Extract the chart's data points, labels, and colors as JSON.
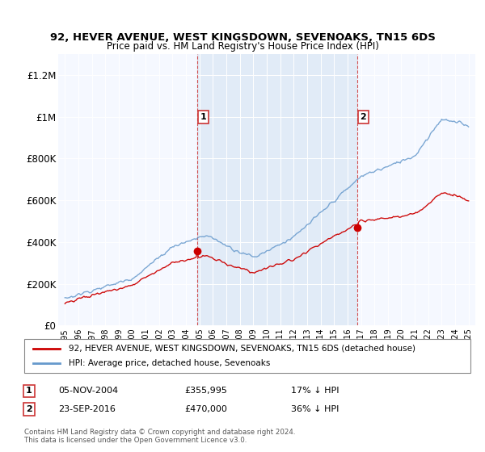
{
  "title": "92, HEVER AVENUE, WEST KINGSDOWN, SEVENOAKS, TN15 6DS",
  "subtitle": "Price paid vs. HM Land Registry's House Price Index (HPI)",
  "background_color": "#ffffff",
  "plot_bg_color": "#f5f8ff",
  "shade_color": "#dce8f5",
  "hpi_color": "#6699cc",
  "price_color": "#cc0000",
  "vline_color": "#cc3333",
  "vline1_x": 2004.85,
  "vline2_x": 2016.73,
  "point1_x": 2004.85,
  "point1_y": 355995,
  "point2_x": 2016.73,
  "point2_y": 470000,
  "ylim": [
    0,
    1300000
  ],
  "xlim": [
    1994.5,
    2025.5
  ],
  "yticks": [
    0,
    200000,
    400000,
    600000,
    800000,
    1000000,
    1200000
  ],
  "ytick_labels": [
    "£0",
    "£200K",
    "£400K",
    "£600K",
    "£800K",
    "£1M",
    "£1.2M"
  ],
  "xticks": [
    1995,
    1996,
    1997,
    1998,
    1999,
    2000,
    2001,
    2002,
    2003,
    2004,
    2005,
    2006,
    2007,
    2008,
    2009,
    2010,
    2011,
    2012,
    2013,
    2014,
    2015,
    2016,
    2017,
    2018,
    2019,
    2020,
    2021,
    2022,
    2023,
    2024,
    2025
  ],
  "legend_label_red": "92, HEVER AVENUE, WEST KINGSDOWN, SEVENOAKS, TN15 6DS (detached house)",
  "legend_label_blue": "HPI: Average price, detached house, Sevenoaks",
  "footer": "Contains HM Land Registry data © Crown copyright and database right 2024.\nThis data is licensed under the Open Government Licence v3.0.",
  "label1_date": "05-NOV-2004",
  "label1_price": "£355,995",
  "label1_hpi": "17% ↓ HPI",
  "label2_date": "23-SEP-2016",
  "label2_price": "£470,000",
  "label2_hpi": "36% ↓ HPI"
}
